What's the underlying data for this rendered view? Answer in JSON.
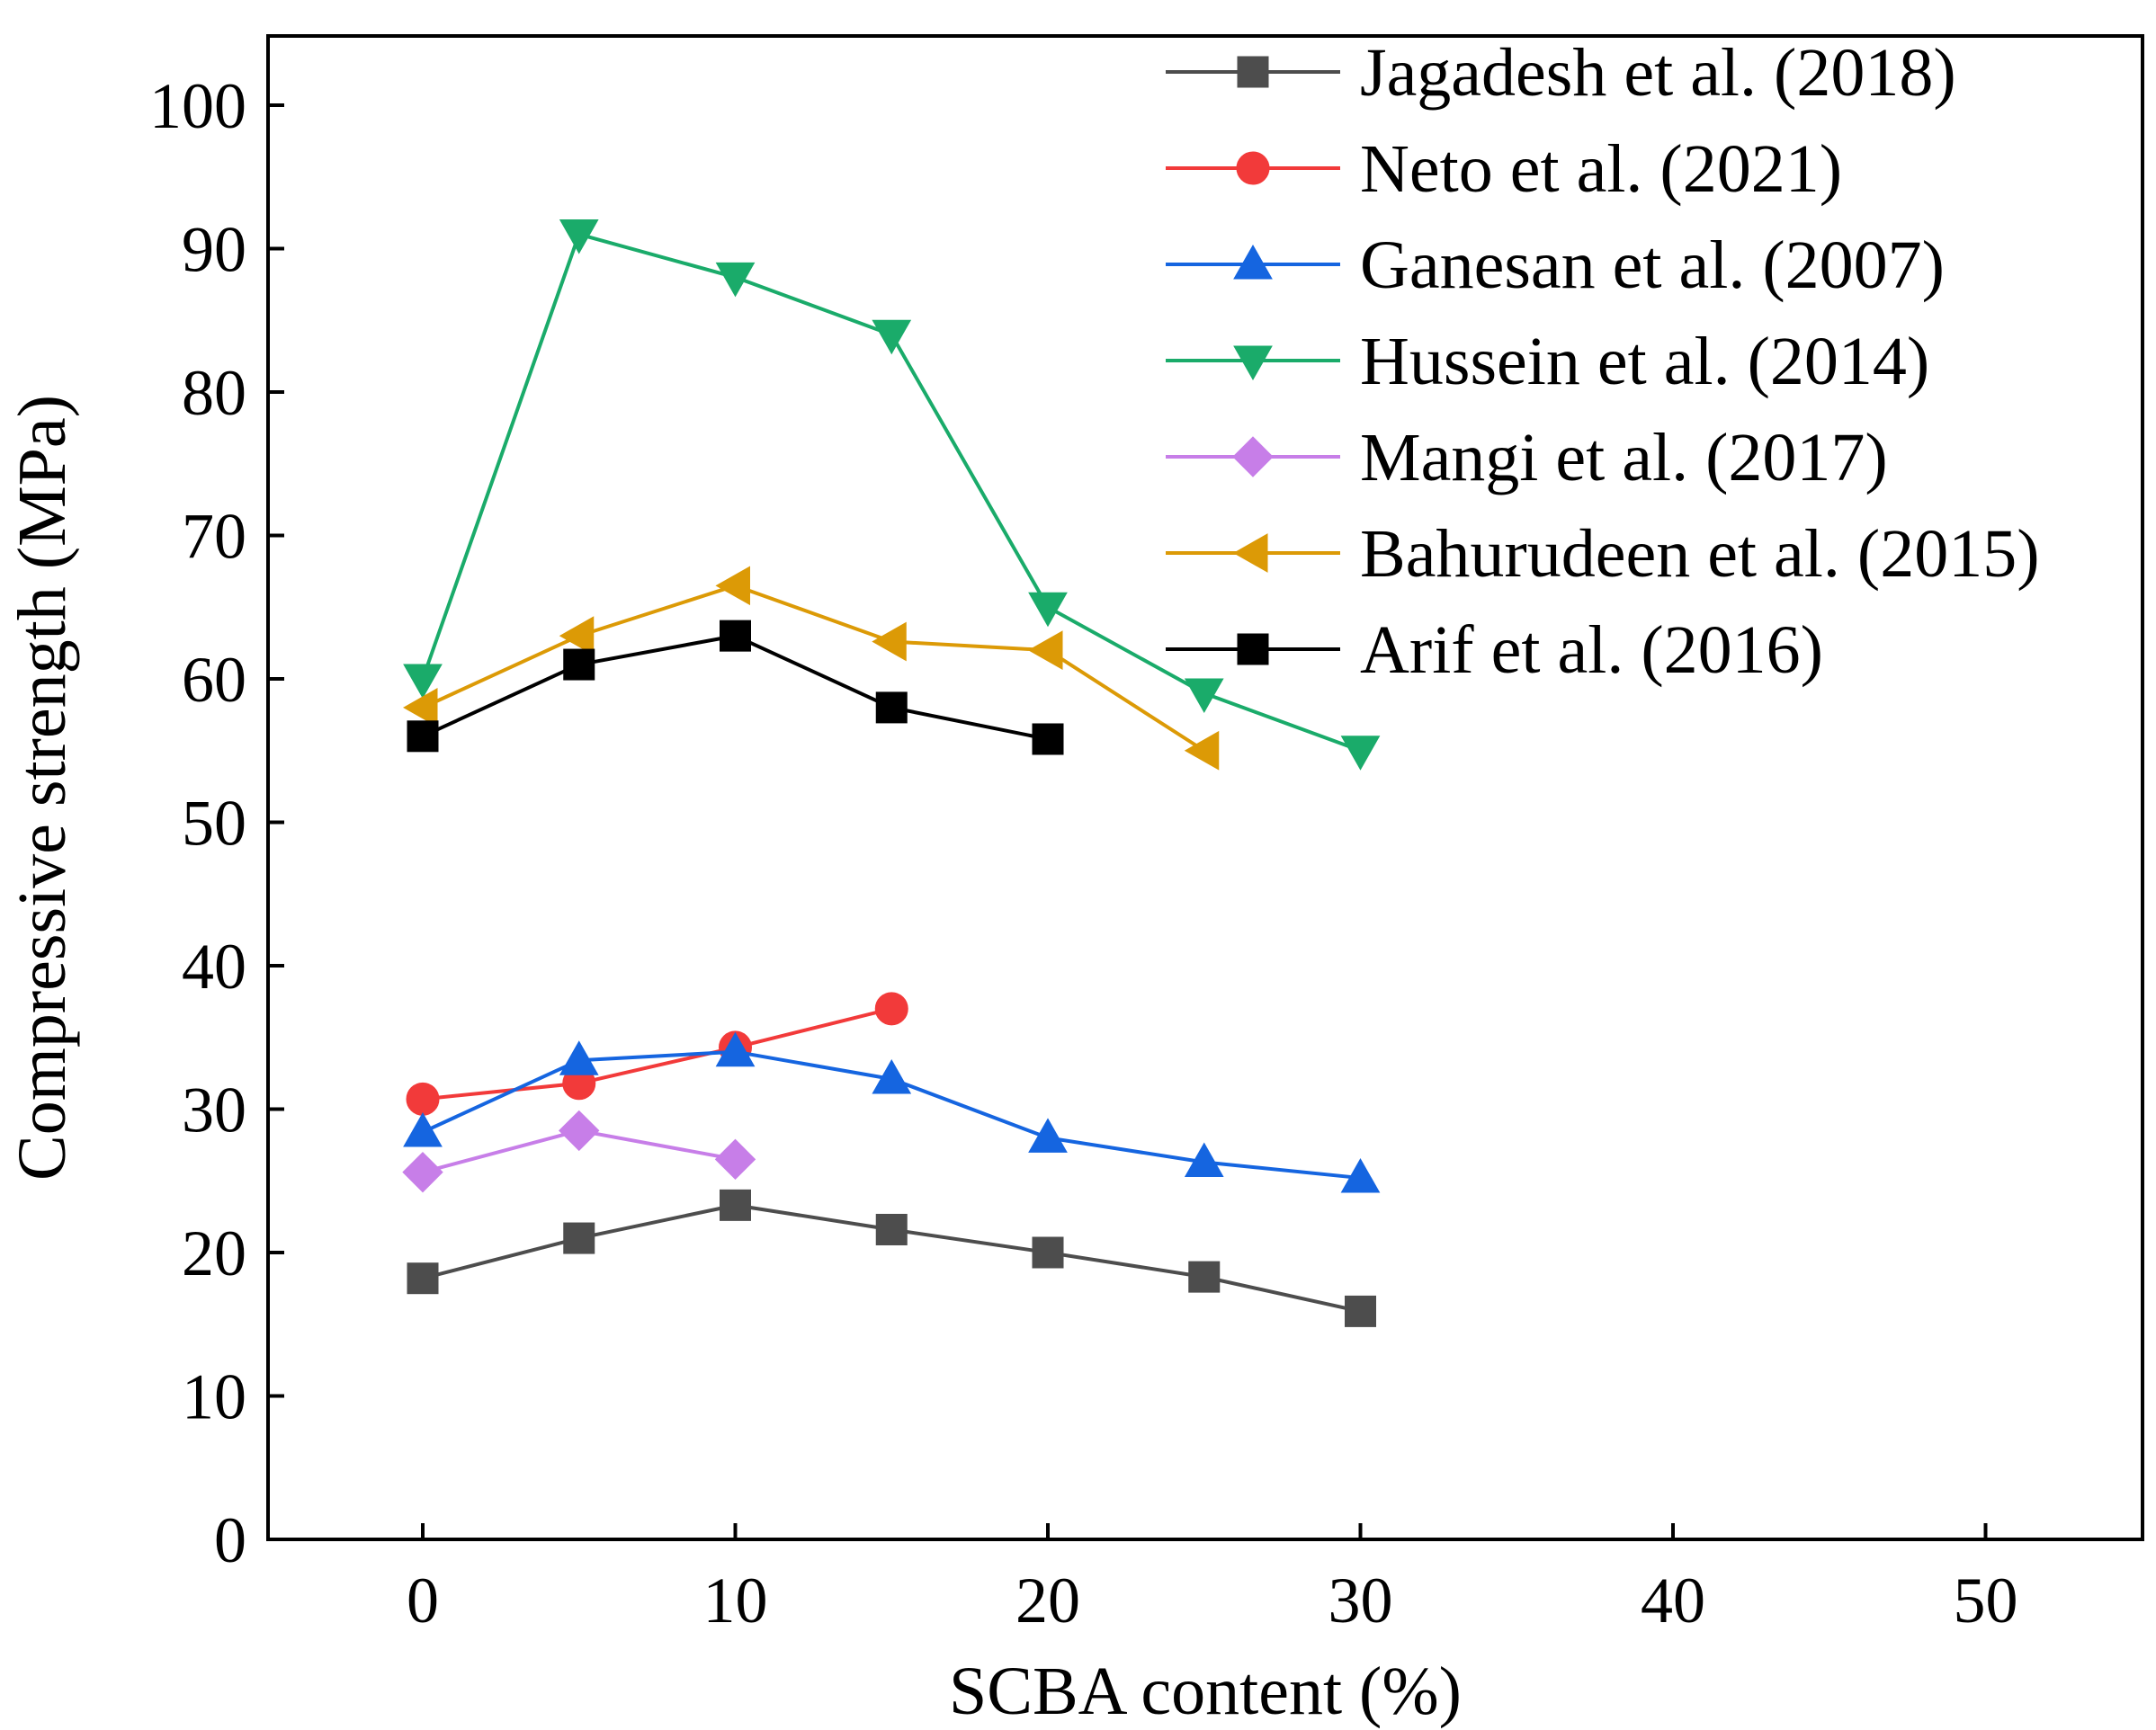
{
  "chart_data": {
    "type": "line",
    "title": "",
    "xlabel": "SCBA content (%)",
    "ylabel": "Compressive strength (MPa)",
    "xlim": [
      -5,
      55
    ],
    "ylim": [
      0,
      105
    ],
    "xticks": [
      0,
      10,
      20,
      30,
      40,
      50
    ],
    "yticks": [
      0,
      10,
      20,
      30,
      40,
      50,
      60,
      70,
      80,
      90,
      100
    ],
    "xtick_labels": [
      "0",
      "10",
      "20",
      "30",
      "40",
      "50"
    ],
    "ytick_labels": [
      "0",
      "10",
      "20",
      "30",
      "40",
      "50",
      "60",
      "70",
      "80",
      "90",
      "100"
    ],
    "grid": false,
    "legend_position": "top-right",
    "series": [
      {
        "name": "Jagadesh et al. (2018)",
        "color": "#4d4d4d",
        "marker": "square",
        "x": [
          0,
          5,
          10,
          15,
          20,
          25,
          30
        ],
        "values": [
          18.2,
          21.0,
          23.3,
          21.6,
          20.0,
          18.3,
          15.9
        ]
      },
      {
        "name": "Neto et al. (2021)",
        "color": "#f23a3a",
        "marker": "circle",
        "x": [
          0,
          5,
          10,
          15
        ],
        "values": [
          30.7,
          31.8,
          34.3,
          37.0
        ]
      },
      {
        "name": "Ganesan et al. (2007)",
        "color": "#1565e0",
        "marker": "triangle-up",
        "x": [
          0,
          5,
          10,
          15,
          20,
          25,
          30
        ],
        "values": [
          28.4,
          33.4,
          34.0,
          32.1,
          28.0,
          26.3,
          25.2
        ]
      },
      {
        "name": "Hussein et al. (2014)",
        "color": "#1aab6a",
        "marker": "triangle-down",
        "x": [
          0,
          5,
          10,
          15,
          20,
          25,
          30
        ],
        "values": [
          60.0,
          91.0,
          88.0,
          84.0,
          65.0,
          59.0,
          55.0
        ]
      },
      {
        "name": "Mangi et al. (2017)",
        "color": "#c77ee8",
        "marker": "diamond",
        "x": [
          0,
          5,
          10
        ],
        "values": [
          25.6,
          28.5,
          26.5
        ]
      },
      {
        "name": "Bahurudeen et al. (2015)",
        "color": "#dc9a06",
        "marker": "triangle-left",
        "x": [
          0,
          5,
          10,
          15,
          20,
          25
        ],
        "values": [
          58.0,
          63.0,
          66.5,
          62.6,
          62.0,
          55.0
        ]
      },
      {
        "name": "Arif et al. (2016)",
        "color": "#000000",
        "marker": "square",
        "x": [
          0,
          5,
          10,
          15,
          20
        ],
        "values": [
          56.0,
          61.0,
          63.0,
          58.0,
          55.8
        ]
      }
    ]
  }
}
